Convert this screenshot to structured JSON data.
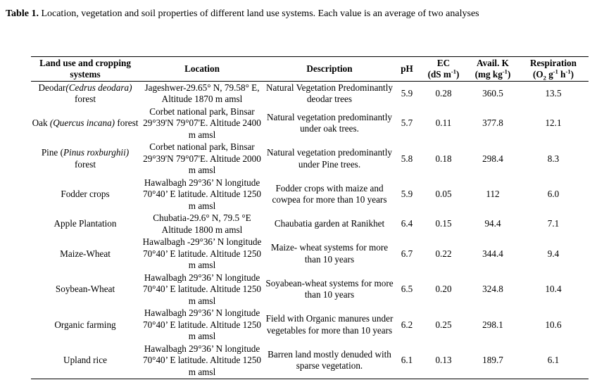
{
  "caption": {
    "label": "Table 1.",
    "text": " Location, vegetation and soil properties of different land use systems. Each value is an average of two analyses"
  },
  "headers": {
    "land_use": "Land use and cropping systems",
    "location": "Location",
    "description": "Description",
    "ph": "pH",
    "ec_main": "EC",
    "ec_unit_pre": "(dS m",
    "ec_unit_sup": "-1",
    "ec_unit_post": ")",
    "k_main": "Avail. K",
    "k_unit_pre": "(mg kg",
    "k_unit_sup": "-1",
    "k_unit_post": ")",
    "resp_main": "Respiration",
    "resp_unit_pre": "(O",
    "resp_unit_sub": "2",
    "resp_unit_mid": " g",
    "resp_unit_sup1": "-1",
    "resp_unit_mid2": " h",
    "resp_unit_sup2": "-1",
    "resp_unit_post": ")"
  },
  "rows": [
    {
      "name_pre": "Deodar",
      "name_italic": "(Cedrus deodara)",
      "name_post": " forest",
      "location": "Jageshwer-29.65° N, 79.58° E, Altitude 1870 m amsl",
      "description": "Natural Vegetation Predominantly deodar trees",
      "ph": "5.9",
      "ec": "0.28",
      "k": "360.5",
      "resp": "13.5"
    },
    {
      "name_pre": "Oak ",
      "name_italic": "(Quercus incana)",
      "name_post": " forest",
      "location": "Corbet national park, Binsar 29°39'N 79°07'E.   Altitude 2400 m amsl",
      "description": "Natural vegetation predominantly under oak trees.",
      "ph": "5.7",
      "ec": "0.11",
      "k": "377.8",
      "resp": "12.1"
    },
    {
      "name_pre": "Pine (",
      "name_italic": "Pinus roxburghii)",
      "name_post": "  forest",
      "location": "Corbet national park, Binsar 29°39'N 79°07'E.   Altitude 2000 m amsl",
      "description": "Natural vegetation predominantly under Pine trees.",
      "ph": "5.8",
      "ec": "0.18",
      "k": "298.4",
      "resp": "8.3"
    },
    {
      "name_pre": "Fodder crops",
      "name_italic": "",
      "name_post": "",
      "location": "Hawalbagh 29°36’ N longitude 70°40’ E latitude. Altitude 1250  m amsl",
      "description": "Fodder crops with maize and cowpea for more than 10 years",
      "ph": "5.9",
      "ec": "0.05",
      "k": "112",
      "resp": "6.0"
    },
    {
      "name_pre": "Apple Plantation",
      "name_italic": "",
      "name_post": "",
      "location": "Chubatia-29.6° N, 79.5 °E Altitude 1800 m amsl",
      "description": "Chaubatia garden at Ranikhet",
      "ph": "6.4",
      "ec": "0.15",
      "k": "94.4",
      "resp": "7.1"
    },
    {
      "name_pre": "Maize-Wheat",
      "name_italic": "",
      "name_post": "",
      "location": "Hawalbagh -29°36’ N longitude 70°40’ E latitude. Altitude   1250 m amsl",
      "description": "Maize- wheat systems for more than 10 years",
      "ph": "6.7",
      "ec": "0.22",
      "k": "344.4",
      "resp": "9.4"
    },
    {
      "name_pre": "Soybean-Wheat",
      "name_italic": "",
      "name_post": "",
      "location": "Hawalbagh 29°36’ N longitude 70°40’ E latitude. Altitude   1250 m amsl",
      "description": "Soyabean-wheat systems for more than 10 years",
      "ph": "6.5",
      "ec": "0.20",
      "k": "324.8",
      "resp": "10.4"
    },
    {
      "name_pre": "Organic farming",
      "name_italic": "",
      "name_post": "",
      "location": "Hawalbagh 29°36’ N longitude 70°40’ E latitude. Altitude   1250 m amsl",
      "description": "Field with Organic manures under vegetables for  more than 10 years",
      "ph": "6.2",
      "ec": "0.25",
      "k": "298.1",
      "resp": "10.6"
    },
    {
      "name_pre": "Upland rice",
      "name_italic": "",
      "name_post": "",
      "location": "Hawalbagh 29°36’ N longitude 70°40’ E latitude. Altitude   1250 m amsl",
      "description": "Barren land mostly denuded with sparse vegetation.",
      "ph": "6.1",
      "ec": "0.13",
      "k": "189.7",
      "resp": "6.1"
    }
  ]
}
